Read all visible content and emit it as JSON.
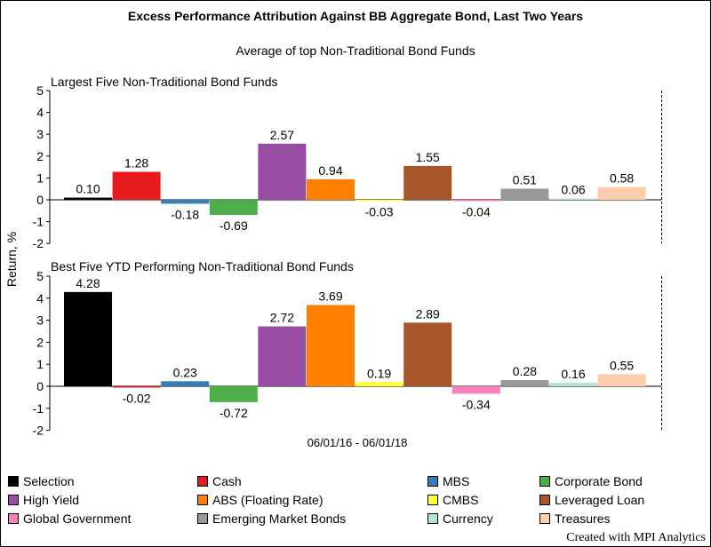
{
  "title": "Excess Performance Attribution Against BB Aggregate Bond, Last Two Years",
  "subtitle": "Average of top Non-Traditional Bond Funds",
  "footer": "Created with MPI Analytics",
  "chart_data": {
    "type": "bar",
    "ylabel": "Return, %",
    "xlabel": "06/01/16 - 06/01/18",
    "ylim": [
      -2,
      5
    ],
    "yticks": [
      "-2",
      "-1",
      "0",
      "1",
      "2",
      "3",
      "4",
      "5"
    ],
    "categories": [
      "Selection",
      "Cash",
      "MBS",
      "Corporate Bond",
      "High Yield",
      "ABS (Floating Rate)",
      "CMBS",
      "Leveraged Loan",
      "Global Government",
      "Emerging Market Bonds",
      "Currency",
      "Treasures"
    ],
    "colors": [
      "#000000",
      "#e41a1c",
      "#377eb8",
      "#4daf4a",
      "#984ea3",
      "#ff7f00",
      "#ffff33",
      "#a65628",
      "#f781bf",
      "#999999",
      "#b3e2cd",
      "#fdcdac"
    ],
    "panels": [
      {
        "title": "Largest Five Non-Traditional Bond Funds",
        "values": [
          0.1,
          1.28,
          -0.18,
          -0.69,
          2.57,
          0.94,
          -0.03,
          1.55,
          -0.04,
          0.51,
          0.06,
          0.58
        ],
        "labels": [
          "0.10",
          "1.28",
          "-0.18",
          "-0.69",
          "2.57",
          "0.94",
          "-0.03",
          "1.55",
          "-0.04",
          "0.51",
          "0.06",
          "0.58"
        ]
      },
      {
        "title": "Best Five YTD Performing Non-Traditional Bond Funds",
        "values": [
          4.28,
          -0.02,
          0.23,
          -0.72,
          2.72,
          3.69,
          0.19,
          2.89,
          -0.34,
          0.28,
          0.16,
          0.55
        ],
        "labels": [
          "4.28",
          "-0.02",
          "0.23",
          "-0.72",
          "2.72",
          "3.69",
          "0.19",
          "2.89",
          "-0.34",
          "0.28",
          "0.16",
          "0.55"
        ]
      }
    ],
    "legend_position": "bottom",
    "grid": false
  }
}
